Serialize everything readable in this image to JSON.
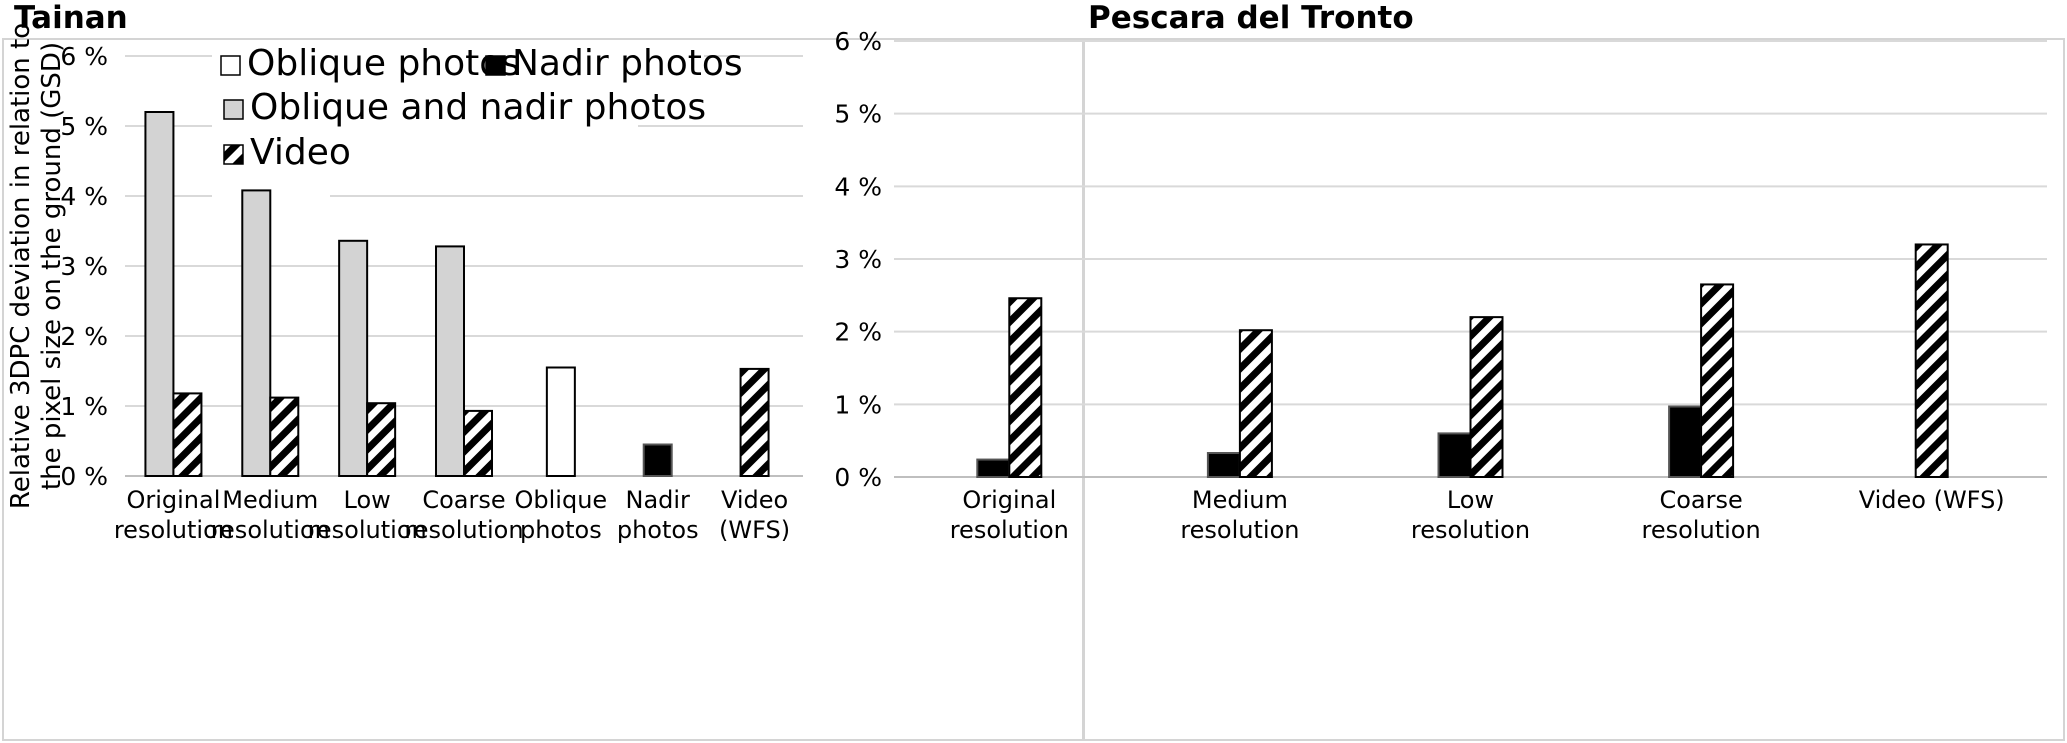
{
  "titles": {
    "left": "Tainan",
    "right": "Pescara del Tronto"
  },
  "colors": {
    "oblique": "#ffffff",
    "nadir": "#000000",
    "oblique_nadir": "#d3d3d3",
    "video": "hatched-diagonal",
    "gridline": "#d9d9d9"
  },
  "chart_data": [
    {
      "type": "bar",
      "title": "Tainan",
      "ylabel": "Relative 3DPC deviation in relation to the pixel size on the ground (GSD)",
      "xlabel": "",
      "ylim": [
        0,
        6
      ],
      "y_ticks": [
        "0 %",
        "1 %",
        "2 %",
        "3 %",
        "4 %",
        "5 %",
        "6 %"
      ],
      "grid": true,
      "legend_position": "top",
      "legend": [
        "Oblique photos",
        "Nadir photos",
        "Oblique and nadir photos",
        "Video"
      ],
      "categories": [
        [
          "Original",
          "resolution"
        ],
        [
          "Medium",
          "resolution"
        ],
        [
          "Low",
          "resolution"
        ],
        [
          "Coarse",
          "resolution"
        ],
        [
          "Oblique",
          "photos"
        ],
        [
          "Nadir",
          "photos"
        ],
        [
          "Video",
          "(WFS)"
        ]
      ],
      "series": [
        {
          "name": "Oblique photos",
          "values": [
            null,
            null,
            null,
            null,
            1.55,
            null,
            null
          ]
        },
        {
          "name": "Nadir photos",
          "values": [
            null,
            null,
            null,
            null,
            null,
            0.45,
            null
          ]
        },
        {
          "name": "Oblique and nadir photos",
          "values": [
            5.2,
            4.08,
            3.36,
            3.28,
            null,
            null,
            null
          ]
        },
        {
          "name": "Video",
          "values": [
            1.18,
            1.12,
            1.04,
            0.93,
            null,
            null,
            1.53
          ]
        }
      ]
    },
    {
      "type": "bar",
      "title": "Pescara del Tronto",
      "ylabel": "",
      "xlabel": "",
      "ylim": [
        0,
        6
      ],
      "y_ticks": [
        "0 %",
        "1 %",
        "2 %",
        "3 %",
        "4 %",
        "5 %",
        "6 %"
      ],
      "grid": true,
      "categories": [
        [
          "Original",
          "resolution"
        ],
        [
          "Medium",
          "resolution"
        ],
        [
          "Low",
          "resolution"
        ],
        [
          "Coarse",
          "resolution"
        ],
        [
          "Video (WFS)"
        ]
      ],
      "series": [
        {
          "name": "Nadir photos",
          "values": [
            0.24,
            0.33,
            0.6,
            0.97,
            null
          ]
        },
        {
          "name": "Video",
          "values": [
            2.46,
            2.02,
            2.2,
            2.65,
            3.2
          ]
        }
      ]
    }
  ]
}
